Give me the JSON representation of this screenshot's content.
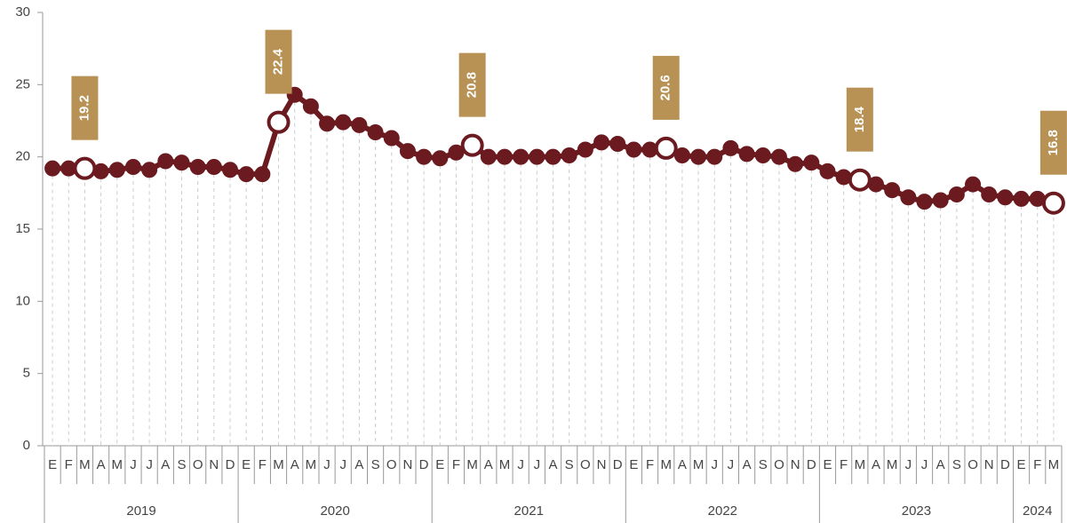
{
  "chart_data": {
    "type": "line",
    "categories": [
      "E",
      "F",
      "M",
      "A",
      "M",
      "J",
      "J",
      "A",
      "S",
      "O",
      "N",
      "D",
      "E",
      "F",
      "M",
      "A",
      "M",
      "J",
      "J",
      "A",
      "S",
      "O",
      "N",
      "D",
      "E",
      "F",
      "M",
      "A",
      "M",
      "J",
      "J",
      "A",
      "S",
      "O",
      "N",
      "D",
      "E",
      "F",
      "M",
      "A",
      "M",
      "J",
      "J",
      "A",
      "S",
      "O",
      "N",
      "D",
      "E",
      "F",
      "M",
      "A",
      "M",
      "J",
      "J",
      "A",
      "S",
      "O",
      "N",
      "D",
      "E",
      "F",
      "M"
    ],
    "years": [
      "2019",
      "2020",
      "2021",
      "2022",
      "2023",
      "2024"
    ],
    "values": [
      19.2,
      19.2,
      19.2,
      19.0,
      19.1,
      19.3,
      19.1,
      19.7,
      19.6,
      19.3,
      19.3,
      19.1,
      18.8,
      18.8,
      22.4,
      24.3,
      23.5,
      22.3,
      22.4,
      22.2,
      21.7,
      21.3,
      20.4,
      20.0,
      19.9,
      20.3,
      20.8,
      20.0,
      20.0,
      20.0,
      20.0,
      20.0,
      20.1,
      20.5,
      21.0,
      20.9,
      20.5,
      20.5,
      20.6,
      20.1,
      20.0,
      20.0,
      20.6,
      20.2,
      20.1,
      20.0,
      19.5,
      19.6,
      19.0,
      18.6,
      18.4,
      18.1,
      17.7,
      17.2,
      16.9,
      17.0,
      17.4,
      18.1,
      17.4,
      17.2,
      17.1,
      17.1,
      16.8
    ],
    "highlighted": [
      2,
      14,
      26,
      38,
      50,
      62
    ],
    "color": "#6b1a1f",
    "label_color": "#b89255",
    "ylim": [
      0,
      30
    ],
    "yticks": [
      0,
      5,
      10,
      15,
      20,
      25,
      30
    ],
    "grid": true
  }
}
